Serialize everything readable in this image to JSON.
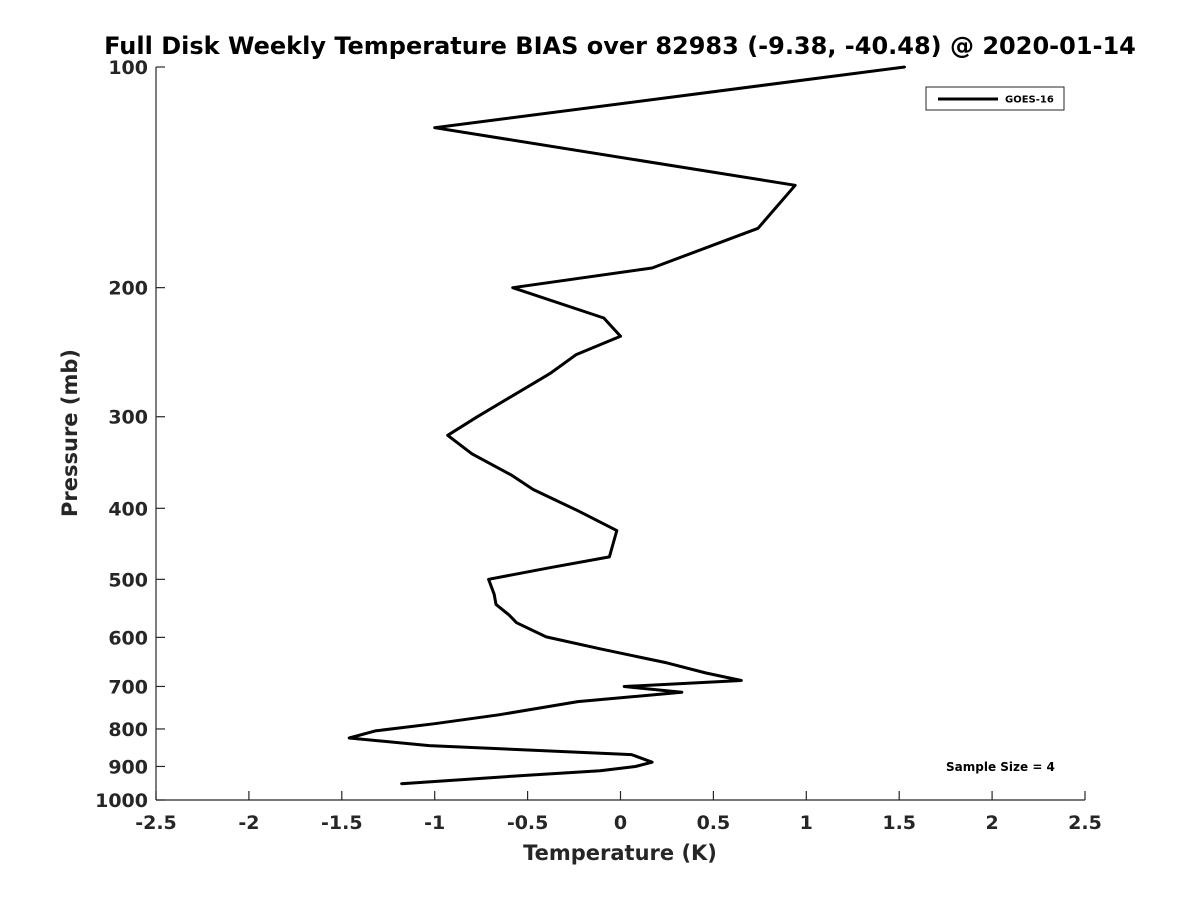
{
  "chart_data": {
    "type": "line",
    "title": "Full Disk Weekly Temperature BIAS over 82983 (-9.38, -40.48) @ 2020-01-14",
    "xlabel": "Temperature (K)",
    "ylabel": "Pressure (mb)",
    "xlim": [
      -2.5,
      2.5
    ],
    "ylim": [
      100,
      1000
    ],
    "y_scale": "log",
    "y_reversed": true,
    "x_ticks": [
      -2.5,
      -2,
      -1.5,
      -1,
      -0.5,
      0,
      0.5,
      1,
      1.5,
      2,
      2.5
    ],
    "x_tick_labels": [
      "-2.5",
      "-2",
      "-1.5",
      "-1",
      "-0.5",
      "0",
      "0.5",
      "1",
      "1.5",
      "2",
      "2.5"
    ],
    "y_ticks": [
      100,
      200,
      300,
      400,
      500,
      600,
      700,
      800,
      900,
      1000
    ],
    "y_tick_labels": [
      "100",
      "200",
      "300",
      "400",
      "500",
      "600",
      "700",
      "800",
      "900",
      "1000"
    ],
    "grid": false,
    "legend_position": "top-right",
    "series": [
      {
        "name": "GOES-16",
        "color": "#000000",
        "points": [
          {
            "x": 1.53,
            "p": 100
          },
          {
            "x": -1.0,
            "p": 121
          },
          {
            "x": 0.94,
            "p": 145
          },
          {
            "x": 0.74,
            "p": 166
          },
          {
            "x": 0.17,
            "p": 188
          },
          {
            "x": -0.58,
            "p": 200
          },
          {
            "x": -0.09,
            "p": 220
          },
          {
            "x": 0.0,
            "p": 233
          },
          {
            "x": -0.24,
            "p": 247
          },
          {
            "x": -0.38,
            "p": 262
          },
          {
            "x": -0.77,
            "p": 300
          },
          {
            "x": -0.93,
            "p": 318
          },
          {
            "x": -0.8,
            "p": 337
          },
          {
            "x": -0.59,
            "p": 360
          },
          {
            "x": -0.47,
            "p": 377
          },
          {
            "x": -0.23,
            "p": 403
          },
          {
            "x": -0.02,
            "p": 429
          },
          {
            "x": -0.06,
            "p": 466
          },
          {
            "x": -0.38,
            "p": 482
          },
          {
            "x": -0.71,
            "p": 500
          },
          {
            "x": -0.68,
            "p": 524
          },
          {
            "x": -0.67,
            "p": 541
          },
          {
            "x": -0.6,
            "p": 559
          },
          {
            "x": -0.56,
            "p": 573
          },
          {
            "x": -0.4,
            "p": 599
          },
          {
            "x": -0.11,
            "p": 622
          },
          {
            "x": 0.25,
            "p": 650
          },
          {
            "x": 0.46,
            "p": 671
          },
          {
            "x": 0.65,
            "p": 687
          },
          {
            "x": 0.02,
            "p": 700
          },
          {
            "x": 0.33,
            "p": 713
          },
          {
            "x": -0.23,
            "p": 734
          },
          {
            "x": -0.65,
            "p": 765
          },
          {
            "x": -1.0,
            "p": 787
          },
          {
            "x": -1.32,
            "p": 805
          },
          {
            "x": -1.46,
            "p": 823
          },
          {
            "x": -1.03,
            "p": 843
          },
          {
            "x": 0.06,
            "p": 867
          },
          {
            "x": 0.17,
            "p": 888
          },
          {
            "x": 0.08,
            "p": 900
          },
          {
            "x": -0.11,
            "p": 912
          },
          {
            "x": -0.5,
            "p": 925
          },
          {
            "x": -1.18,
            "p": 950
          }
        ]
      }
    ],
    "annotations": [
      "Sample Size = 4"
    ]
  },
  "colors": {
    "axis": "#262626",
    "line": "#000000",
    "background": "#ffffff"
  }
}
